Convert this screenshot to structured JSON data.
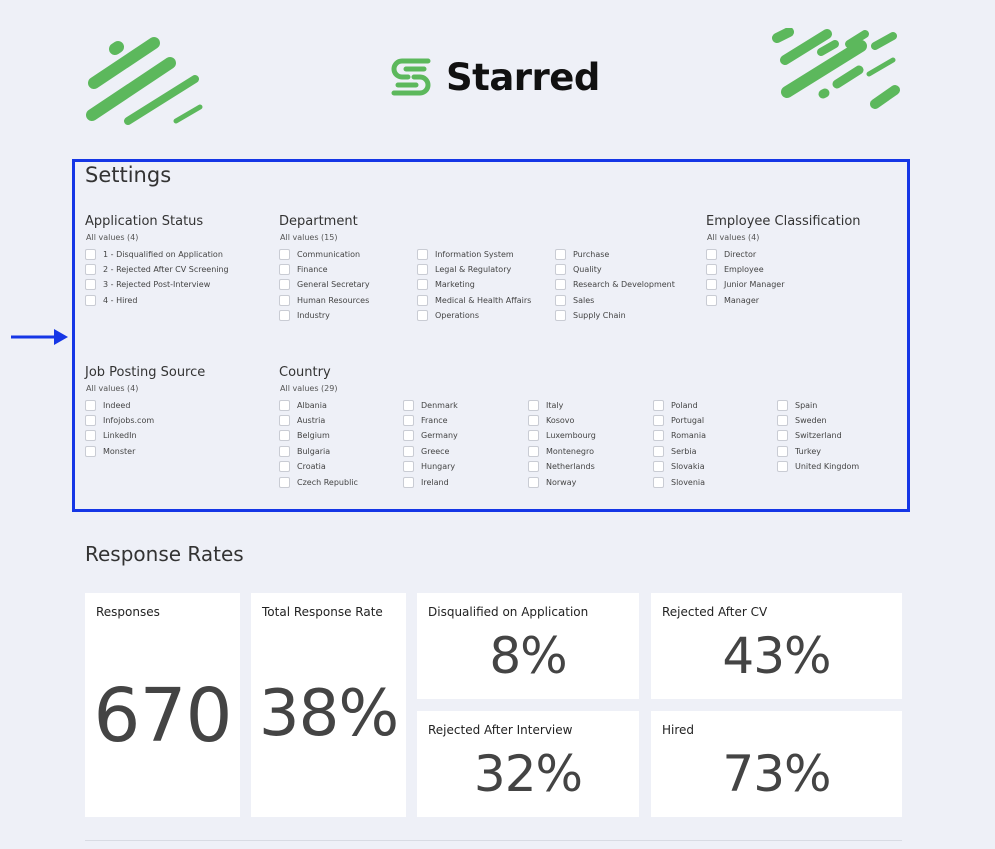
{
  "brand": {
    "name": "Starred",
    "color": "#5cb85c"
  },
  "settings": {
    "title": "Settings",
    "application_status": {
      "title": "Application Status",
      "sub": "All values (4)",
      "options": [
        "1 - Disqualified on Application",
        "2 - Rejected After CV Screening",
        "3 - Rejected Post-Interview",
        "4 - Hired"
      ]
    },
    "department": {
      "title": "Department",
      "sub": "All values (15)",
      "options": [
        "Communication",
        "Finance",
        "General Secretary",
        "Human Resources",
        "Industry",
        "Information System",
        "Legal & Regulatory",
        "Marketing",
        "Medical & Health Affairs",
        "Operations",
        "Purchase",
        "Quality",
        "Research & Development",
        "Sales",
        "Supply Chain"
      ]
    },
    "employee_classification": {
      "title": "Employee Classification",
      "sub": "All values (4)",
      "options": [
        "Director",
        "Employee",
        "Junior Manager",
        "Manager"
      ]
    },
    "job_posting_source": {
      "title": "Job Posting Source",
      "sub": "All values (4)",
      "options": [
        "Indeed",
        "Infojobs.com",
        "LinkedIn",
        "Monster"
      ]
    },
    "country": {
      "title": "Country",
      "sub": "All values (29)",
      "options": [
        "Albania",
        "Austria",
        "Belgium",
        "Bulgaria",
        "Croatia",
        "Czech Republic",
        "Denmark",
        "France",
        "Germany",
        "Greece",
        "Hungary",
        "Ireland",
        "Italy",
        "Kosovo",
        "Luxembourg",
        "Montenegro",
        "Netherlands",
        "Norway",
        "Poland",
        "Portugal",
        "Romania",
        "Serbia",
        "Slovakia",
        "Slovenia",
        "Spain",
        "Sweden",
        "Switzerland",
        "Turkey",
        "United Kingdom"
      ]
    }
  },
  "response_rates": {
    "title": "Response Rates",
    "responses": {
      "label": "Responses",
      "value": "670"
    },
    "total": {
      "label": "Total Response Rate",
      "value": "38%"
    },
    "disqualified": {
      "label": "Disqualified on Application",
      "value": "8%"
    },
    "rejected_cv": {
      "label": "Rejected After CV",
      "value": "43%"
    },
    "rejected_interview": {
      "label": "Rejected After Interview",
      "value": "32%"
    },
    "hired": {
      "label": "Hired",
      "value": "73%"
    }
  },
  "colors": {
    "accent_green": "#5cb85c",
    "highlight_blue": "#1536e6",
    "background": "#eef0f7"
  }
}
